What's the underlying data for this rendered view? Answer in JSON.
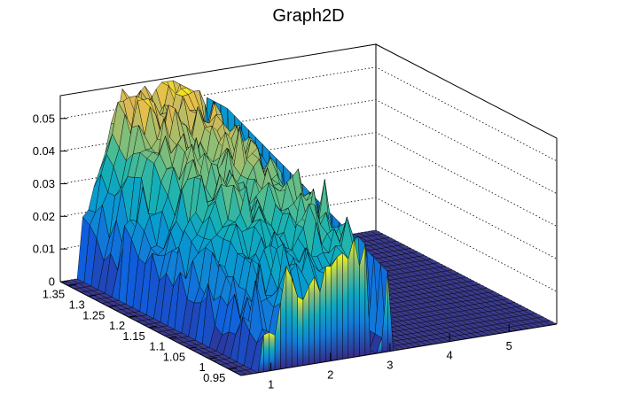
{
  "chart_data": {
    "type": "surface3d",
    "title": "Graph2D",
    "xlabel": "",
    "ylabel": "",
    "zlabel": "",
    "x_ticks": [
      "1",
      "2",
      "3",
      "4",
      "5"
    ],
    "y_ticks": [
      "0.95",
      "1",
      "1.05",
      "1.1",
      "1.15",
      "1.2",
      "1.25",
      "1.3",
      "1.35"
    ],
    "z_ticks": [
      "0",
      "0.01",
      "0.02",
      "0.03",
      "0.04",
      "0.05"
    ],
    "xlim": [
      0.5,
      5.8
    ],
    "ylim": [
      0.92,
      1.37
    ],
    "zlim": [
      0,
      0.057
    ],
    "grid": true,
    "palette": "kBird",
    "colors": {
      "low": "#352a87",
      "mid": "#1fa9b3",
      "high": "#f9fb0e",
      "floor": "#3a3a8c"
    },
    "surface_summary": {
      "x_nonzero_range": [
        0.5,
        2.7
      ],
      "zero_gap_x": [
        2.65,
        2.85
      ],
      "spike_x": 2.95,
      "spike_height": 0.055,
      "plateau_height_range": [
        0.02,
        0.052
      ],
      "x_floor_range": [
        3.0,
        5.8
      ]
    }
  }
}
